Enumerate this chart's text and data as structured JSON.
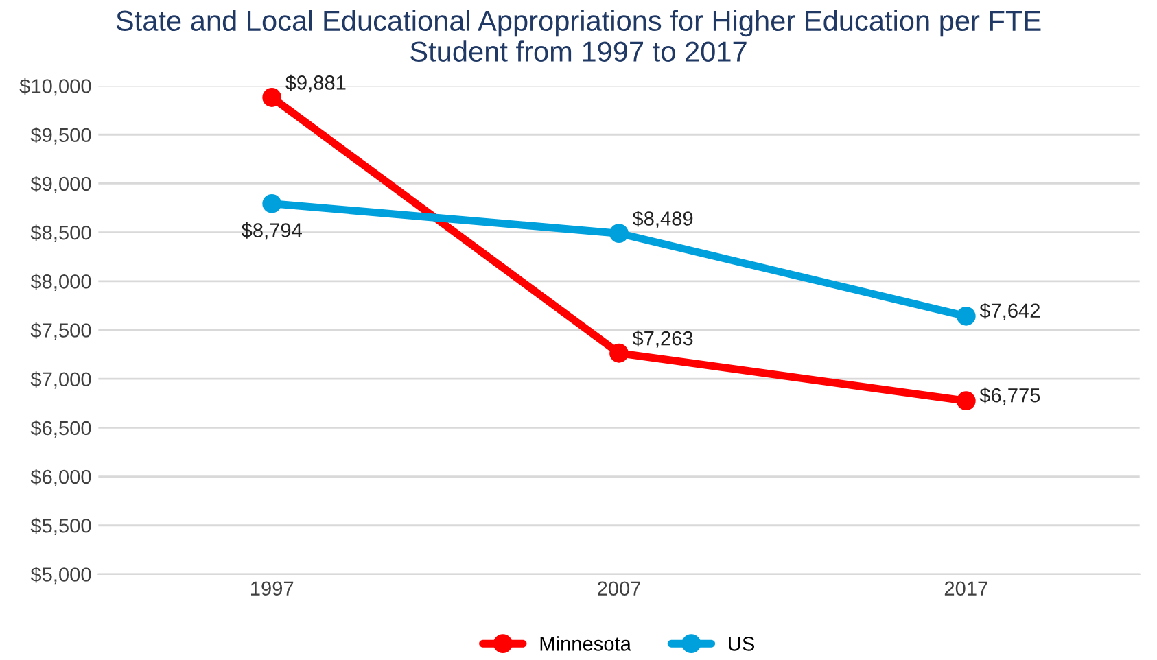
{
  "chart_data": {
    "type": "line",
    "title": "State and Local Educational Appropriations for Higher Education per FTE\nStudent from 1997 to 2017",
    "categories": [
      "1997",
      "2007",
      "2017"
    ],
    "series": [
      {
        "name": "Minnesota",
        "color": "#ff0000",
        "values": [
          9881,
          7263,
          6775
        ],
        "value_labels": [
          "$9,881",
          "$7,263",
          "$6,775"
        ]
      },
      {
        "name": "US",
        "color": "#00a0dc",
        "values": [
          8794,
          8489,
          7642
        ],
        "value_labels": [
          "$8,794",
          "$8,489",
          "$7,642"
        ]
      }
    ],
    "ylim": [
      5000,
      10000
    ],
    "yticks": [
      {
        "value": 5000,
        "label": "$5,000"
      },
      {
        "value": 5500,
        "label": "$5,500"
      },
      {
        "value": 6000,
        "label": "$6,000"
      },
      {
        "value": 6500,
        "label": "$6,500"
      },
      {
        "value": 7000,
        "label": "$7,000"
      },
      {
        "value": 7500,
        "label": "$7,500"
      },
      {
        "value": 8000,
        "label": "$8,000"
      },
      {
        "value": 8500,
        "label": "$8,500"
      },
      {
        "value": 9000,
        "label": "$9,000"
      },
      {
        "value": 9500,
        "label": "$9,500"
      },
      {
        "value": 10000,
        "label": "$10,000"
      }
    ],
    "grid": "y",
    "legend": "bottom",
    "marker": "circle",
    "line_style": "solid"
  }
}
